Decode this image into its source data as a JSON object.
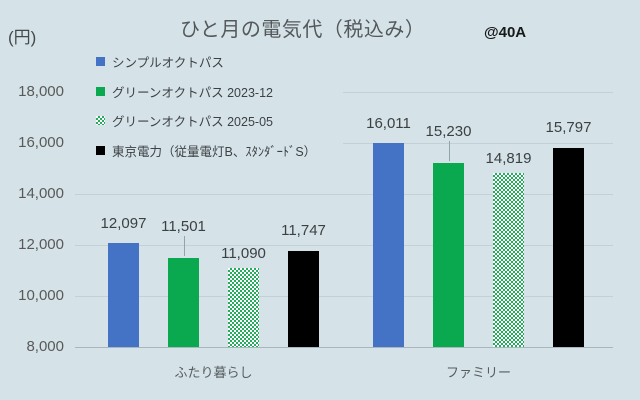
{
  "title": "ひと月の電気代（税込み）",
  "unit_label": "(円)",
  "annotation": "@40A",
  "colors": {
    "background": "#d5e3e8",
    "blue": "#4472c4",
    "green": "#0aa84f",
    "pattern_green": "#27ab5c",
    "black": "#000000",
    "grid": "#c4d0d5",
    "axis": "#a9b6bb",
    "text_dark": "#3b4043",
    "text_gray": "#595959"
  },
  "legend": {
    "items": [
      {
        "label": "シンプルオクトパス",
        "swatch": "blue"
      },
      {
        "label": "グリーンオクトパス 2023-12",
        "swatch": "green"
      },
      {
        "label": "グリーンオクトパス 2025-05",
        "swatch": "pattern"
      },
      {
        "label": "東京電力（従量電灯B、ｽﾀﾝﾀﾞｰﾄﾞS）",
        "swatch": "black"
      }
    ]
  },
  "chart_data": {
    "type": "bar",
    "title": "ひと月の電気代（税込み）",
    "subtitle": "@40A",
    "ylabel": "(円)",
    "xlabel": "",
    "categories": [
      "ふたり暮らし",
      "ファミリー"
    ],
    "series": [
      {
        "name": "シンプルオクトパス",
        "style": "blue",
        "values": [
          12097,
          16011
        ],
        "labels": [
          "12,097",
          "16,011"
        ]
      },
      {
        "name": "グリーンオクトパス 2023-12",
        "style": "green",
        "values": [
          11501,
          15230
        ],
        "labels": [
          "11,501",
          "15,230"
        ]
      },
      {
        "name": "グリーンオクトパス 2025-05",
        "style": "pattern",
        "values": [
          11090,
          14819
        ],
        "labels": [
          "11,090",
          "14,819"
        ]
      },
      {
        "name": "東京電力（従量電灯B、ｽﾀﾝﾀﾞｰﾄﾞS）",
        "style": "black",
        "values": [
          11747,
          15797
        ],
        "labels": [
          "11,747",
          "15,797"
        ]
      }
    ],
    "ylim": [
      8000,
      18000
    ],
    "y_ticks": [
      8000,
      10000,
      12000,
      14000,
      16000,
      18000
    ],
    "y_tick_labels": [
      "8,000",
      "10,000",
      "12,000",
      "14,000",
      "16,000",
      "18,000"
    ],
    "grid": "horizontal",
    "legend_position": "upper-left",
    "data_labels": "outside-end"
  }
}
